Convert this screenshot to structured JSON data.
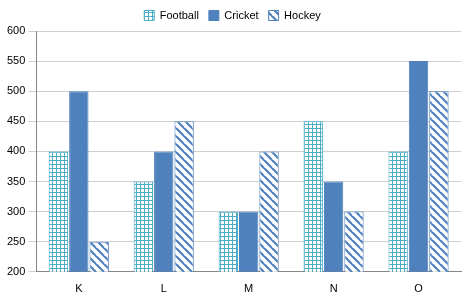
{
  "chart_data": {
    "type": "bar",
    "categories": [
      "K",
      "L",
      "M",
      "N",
      "O"
    ],
    "series": [
      {
        "name": "Football",
        "color": "#4bacc6",
        "values": [
          400,
          350,
          300,
          450,
          400
        ]
      },
      {
        "name": "Cricket",
        "color": "#4f81bd",
        "values": [
          500,
          400,
          300,
          350,
          550
        ]
      },
      {
        "name": "Hockey",
        "color": "#4f81bd",
        "values": [
          250,
          450,
          400,
          300,
          500
        ]
      }
    ],
    "ylim": [
      200,
      600
    ],
    "yticks": [
      200,
      250,
      300,
      350,
      400,
      450,
      500,
      550,
      600
    ],
    "grid": true,
    "legend": "top"
  }
}
